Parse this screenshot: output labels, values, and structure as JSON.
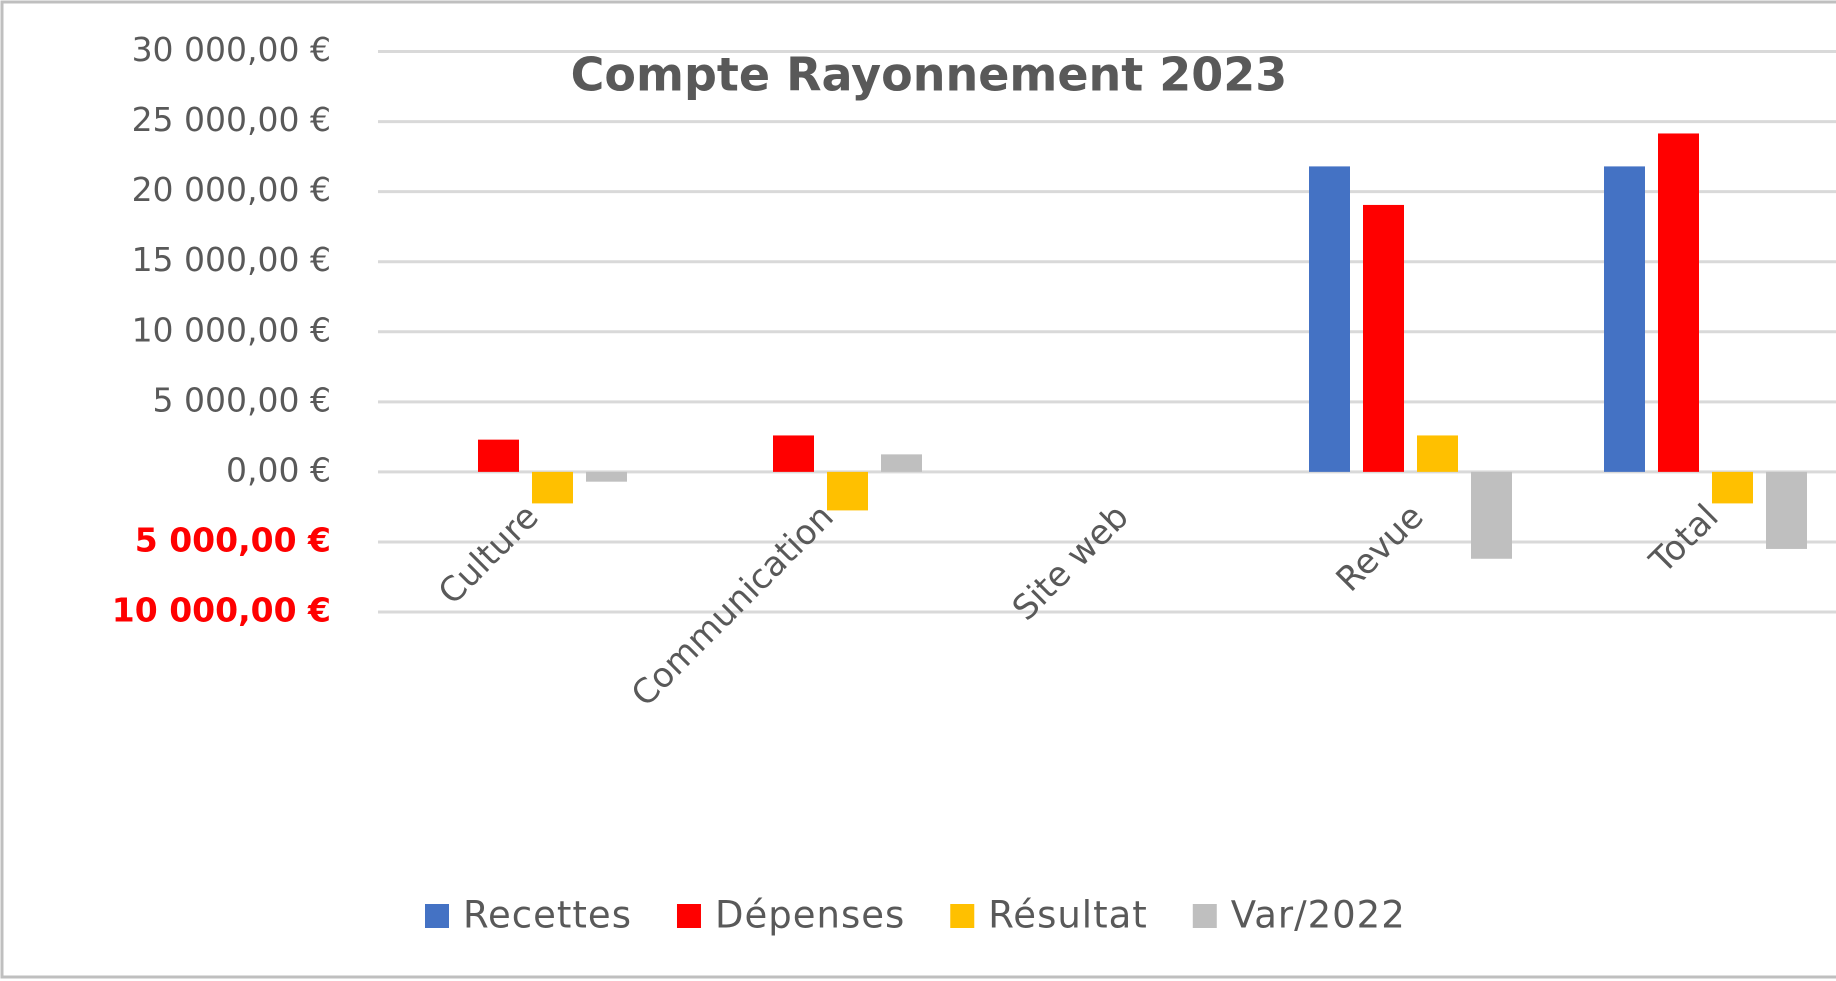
{
  "chart_data": {
    "type": "bar",
    "title": "Compte Rayonnement 2023",
    "categories": [
      "Culture",
      "Communication",
      "Site web",
      "Revue",
      "Total"
    ],
    "series": [
      {
        "name": "Recettes",
        "color": "#4472c4",
        "values": [
          0,
          0,
          0,
          21800,
          21800
        ]
      },
      {
        "name": "Dépenses",
        "color": "#ff0000",
        "values": [
          2300,
          2600,
          0,
          19050,
          24150
        ]
      },
      {
        "name": "Résultat",
        "color": "#ffc000",
        "values": [
          -2250,
          -2750,
          0,
          2600,
          -2250
        ]
      },
      {
        "name": "Var/2022",
        "color": "#bfbfbf",
        "values": [
          -700,
          1250,
          0,
          -6200,
          -5500
        ]
      }
    ],
    "ylim": [
      -10000,
      30000
    ],
    "yticks": [
      {
        "value": -10000,
        "label": "10 000,00 €"
      },
      {
        "value": -5000,
        "label": "5 000,00 €"
      },
      {
        "value": 0,
        "label": "0,00 €"
      },
      {
        "value": 5000,
        "label": "5 000,00 €"
      },
      {
        "value": 10000,
        "label": "10 000,00 €"
      },
      {
        "value": 15000,
        "label": "15 000,00 €"
      },
      {
        "value": 20000,
        "label": "20 000,00 €"
      },
      {
        "value": 25000,
        "label": "25 000,00 €"
      },
      {
        "value": 30000,
        "label": "30 000,00 €"
      }
    ],
    "negative_tick_color": "#ff0000",
    "grid": true,
    "legend": "bottom"
  }
}
